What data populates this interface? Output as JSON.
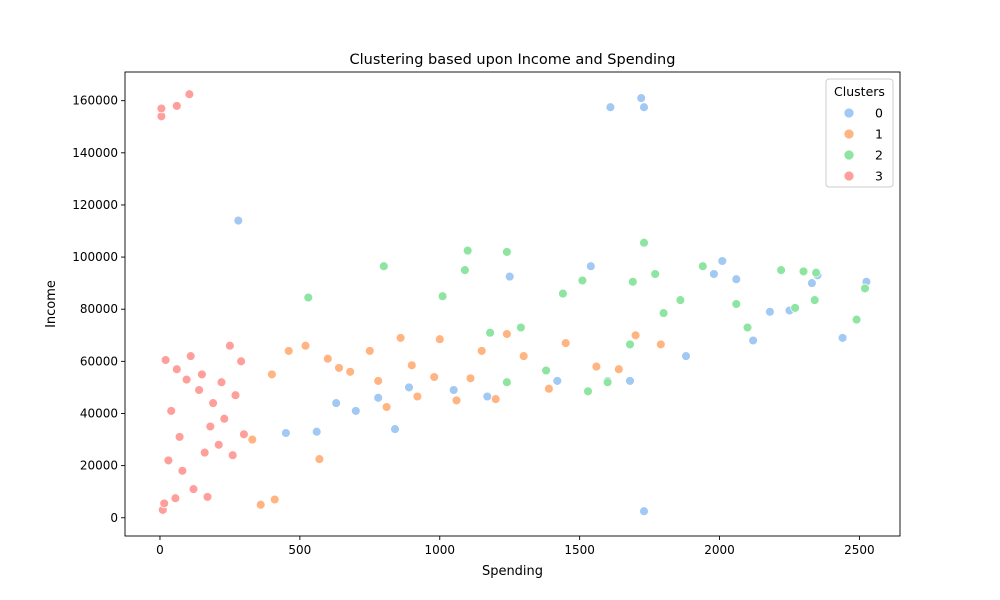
{
  "chart_data": {
    "type": "scatter",
    "title": "Clustering based upon Income and Spending",
    "xlabel": "Spending",
    "ylabel": "Income",
    "xlim": [
      -125,
      2645
    ],
    "ylim": [
      -7000,
      171000
    ],
    "xticks": [
      0,
      500,
      1000,
      1500,
      2000,
      2500
    ],
    "yticks": [
      0,
      20000,
      40000,
      60000,
      80000,
      100000,
      120000,
      140000,
      160000
    ],
    "grid": false,
    "legend": {
      "title": "Clusters",
      "placement": "top-right"
    },
    "series": [
      {
        "name": "0",
        "color": "#a1c9f4",
        "points": [
          [
            280,
            114000
          ],
          [
            1610,
            157500
          ],
          [
            1720,
            161000
          ],
          [
            1730,
            157500
          ],
          [
            1730,
            2500
          ],
          [
            2440,
            69000
          ],
          [
            2525,
            90500
          ],
          [
            2010,
            98500
          ],
          [
            1880,
            62000
          ],
          [
            840,
            34000
          ],
          [
            560,
            33000
          ],
          [
            450,
            32500
          ],
          [
            630,
            44000
          ],
          [
            700,
            41000
          ],
          [
            780,
            46000
          ],
          [
            890,
            50000
          ],
          [
            1250,
            92500
          ],
          [
            1540,
            96500
          ],
          [
            1600,
            52500
          ],
          [
            1680,
            52500
          ],
          [
            1420,
            52500
          ],
          [
            1050,
            49000
          ],
          [
            1170,
            46500
          ],
          [
            1980,
            93500
          ],
          [
            2060,
            91500
          ],
          [
            2120,
            68000
          ],
          [
            2180,
            79000
          ],
          [
            2250,
            79500
          ],
          [
            2330,
            90000
          ],
          [
            2350,
            93000
          ]
        ]
      },
      {
        "name": "1",
        "color": "#ffb482",
        "points": [
          [
            360,
            5000
          ],
          [
            410,
            7000
          ],
          [
            570,
            22500
          ],
          [
            330,
            30000
          ],
          [
            1390,
            49500
          ],
          [
            1560,
            58000
          ],
          [
            1640,
            57000
          ],
          [
            1790,
            66500
          ],
          [
            1200,
            45500
          ],
          [
            1060,
            45000
          ],
          [
            810,
            42500
          ],
          [
            920,
            46500
          ],
          [
            980,
            54000
          ],
          [
            1110,
            53500
          ],
          [
            680,
            56000
          ],
          [
            600,
            61000
          ],
          [
            520,
            66000
          ],
          [
            460,
            64000
          ],
          [
            400,
            55000
          ],
          [
            750,
            64000
          ],
          [
            860,
            69000
          ],
          [
            1000,
            68500
          ],
          [
            1150,
            64000
          ],
          [
            1300,
            62000
          ],
          [
            1450,
            67000
          ],
          [
            1700,
            70000
          ],
          [
            1240,
            70500
          ],
          [
            900,
            58500
          ],
          [
            780,
            52500
          ],
          [
            640,
            57500
          ]
        ]
      },
      {
        "name": "2",
        "color": "#8de5a1",
        "points": [
          [
            1100,
            102500
          ],
          [
            1240,
            102000
          ],
          [
            1730,
            105500
          ],
          [
            800,
            96500
          ],
          [
            1090,
            95000
          ],
          [
            530,
            84500
          ],
          [
            1530,
            48500
          ],
          [
            1600,
            52000
          ],
          [
            1380,
            56500
          ],
          [
            1240,
            52000
          ],
          [
            1860,
            83500
          ],
          [
            2300,
            94500
          ],
          [
            2345,
            94000
          ],
          [
            2520,
            88000
          ],
          [
            2490,
            76000
          ],
          [
            2100,
            73000
          ],
          [
            2220,
            95000
          ],
          [
            1940,
            96500
          ],
          [
            1770,
            93500
          ],
          [
            1690,
            90500
          ],
          [
            1440,
            86000
          ],
          [
            1510,
            91000
          ],
          [
            2270,
            80500
          ],
          [
            2060,
            82000
          ],
          [
            1680,
            66500
          ],
          [
            1800,
            78500
          ],
          [
            1290,
            73000
          ],
          [
            1180,
            71000
          ],
          [
            1010,
            85000
          ],
          [
            2340,
            83500
          ]
        ]
      },
      {
        "name": "3",
        "color": "#ff9f9b",
        "points": [
          [
            5,
            154000
          ],
          [
            5,
            157000
          ],
          [
            60,
            158000
          ],
          [
            105,
            162500
          ],
          [
            20,
            60500
          ],
          [
            10,
            3000
          ],
          [
            15,
            5500
          ],
          [
            55,
            7500
          ],
          [
            170,
            8000
          ],
          [
            120,
            11000
          ],
          [
            80,
            18000
          ],
          [
            30,
            22000
          ],
          [
            160,
            25000
          ],
          [
            210,
            28000
          ],
          [
            260,
            24000
          ],
          [
            300,
            32000
          ],
          [
            230,
            38000
          ],
          [
            190,
            44000
          ],
          [
            140,
            49000
          ],
          [
            95,
            53000
          ],
          [
            60,
            57000
          ],
          [
            110,
            62000
          ],
          [
            150,
            55000
          ],
          [
            250,
            66000
          ],
          [
            290,
            60000
          ],
          [
            70,
            31000
          ],
          [
            40,
            41000
          ],
          [
            180,
            35000
          ],
          [
            220,
            52000
          ],
          [
            270,
            47000
          ]
        ]
      }
    ]
  }
}
